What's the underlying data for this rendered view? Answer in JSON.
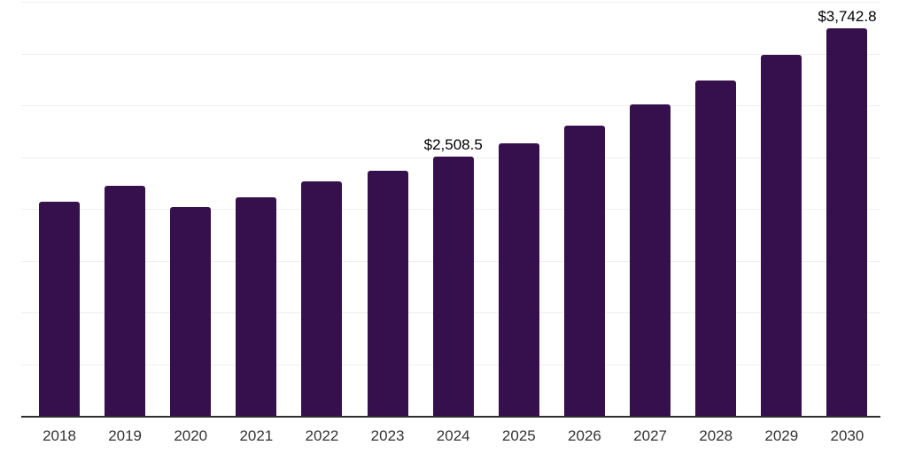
{
  "chart_data": {
    "type": "bar",
    "title": "",
    "xlabel": "",
    "ylabel": "",
    "categories": [
      "2018",
      "2019",
      "2020",
      "2021",
      "2022",
      "2023",
      "2024",
      "2025",
      "2026",
      "2027",
      "2028",
      "2029",
      "2030"
    ],
    "values": [
      2072,
      2222,
      2013,
      2111,
      2265,
      2370,
      2508.5,
      2635,
      2804,
      3008,
      3239,
      3487,
      3742.8
    ],
    "data_labels": [
      null,
      null,
      null,
      null,
      null,
      null,
      "$2,508.5",
      null,
      null,
      null,
      null,
      null,
      "$3,742.8"
    ],
    "ylim": [
      0,
      4000
    ],
    "gridline_interval": 500,
    "grid": "horizontal-only",
    "legend_position": "none",
    "colors": {
      "bar_fill": "#36104d",
      "axis_line": "#2e2e2e",
      "gridline": "#efefef",
      "value_label_text": "#000000",
      "tick_label_text": "#333333",
      "background": "#ffffff"
    }
  }
}
